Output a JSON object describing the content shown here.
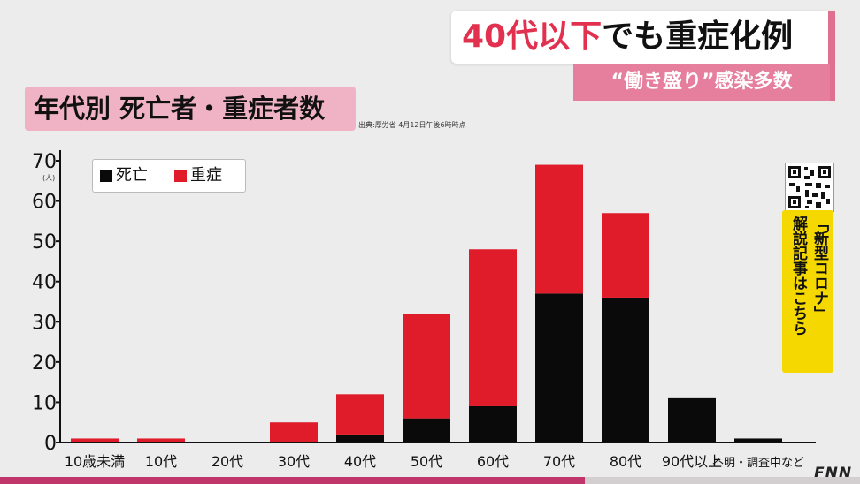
{
  "headline": {
    "accent": "40代以下",
    "rest": "でも重症化例"
  },
  "subheadline": "“働き盛り”感染多数",
  "chart_title": "年代別 死亡者・重症者数",
  "source_note": "出典:厚労省 4月12日午後6時時点",
  "y_unit": "(人)",
  "qr_banner": {
    "line1": "「新型コロナ」",
    "line2": "解説記事はこちら"
  },
  "logo": "FNN",
  "colors": {
    "death": "#0a0a0a",
    "severe": "#e01b2a",
    "accent_text": "#e2304f",
    "pink_box": "#f0b3c6",
    "subhead_bg": "#e67f9d",
    "qr_banner_bg": "#f5d800"
  },
  "progress_bar": {
    "fraction": 0.68,
    "color": "#c0356a"
  },
  "chart_data": {
    "type": "bar",
    "stacked": true,
    "categories": [
      "10歳未満",
      "10代",
      "20代",
      "30代",
      "40代",
      "50代",
      "60代",
      "70代",
      "80代",
      "90代以上",
      "不明・調査中など"
    ],
    "series": [
      {
        "name": "死亡",
        "color": "#0a0a0a",
        "values": [
          0,
          0,
          0,
          0,
          2,
          6,
          9,
          37,
          36,
          11,
          1
        ]
      },
      {
        "name": "重症",
        "color": "#e01b2a",
        "values": [
          1,
          1,
          0,
          5,
          10,
          26,
          39,
          32,
          21,
          0,
          0
        ]
      }
    ],
    "yticks": [
      0,
      10,
      20,
      30,
      40,
      50,
      60,
      70
    ],
    "ylim": [
      0,
      70
    ],
    "grid": false,
    "legend_position": "top-left"
  }
}
